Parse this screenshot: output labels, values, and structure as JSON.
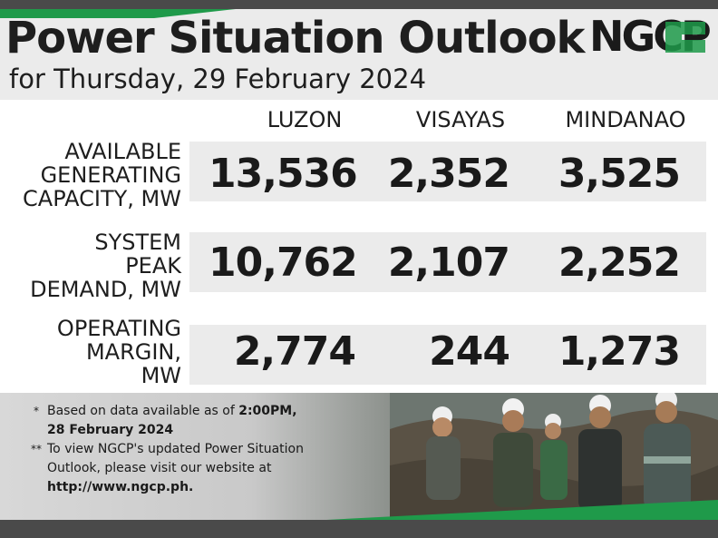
{
  "header": {
    "title": "Power Situation Outlook",
    "subtitle": "for Thursday, 29 February 2024",
    "logo_text": "NGCP"
  },
  "columns": [
    "LUZON",
    "VISAYAS",
    "MINDANAO"
  ],
  "rows": [
    {
      "label_lines": [
        "AVAILABLE",
        "GENERATING",
        "CAPACITY, MW"
      ],
      "values": [
        "13,536",
        "2,352",
        "3,525"
      ]
    },
    {
      "label_lines": [
        "SYSTEM",
        "PEAK",
        "DEMAND, MW"
      ],
      "values": [
        "10,762",
        "2,107",
        "2,252"
      ]
    },
    {
      "label_lines": [
        "OPERATING",
        "MARGIN,",
        "MW"
      ],
      "values": [
        "2,774",
        "244",
        "1,273"
      ]
    }
  ],
  "notes": {
    "note1_mark": "*",
    "note1_text": "Based on data available as of ",
    "note1_bold_time": "2:00PM,",
    "note1_bold_date": "28 February 2024",
    "note2_mark": "**",
    "note2_text_a": "To view NGCP's updated Power Situation",
    "note2_text_b": "Outlook, please visit our website at",
    "note2_url": "http://www.ngcp.ph."
  },
  "colors": {
    "accent_green": "#1f9a4a",
    "dark_bar": "#4a4a4a",
    "band_gray": "#ebebeb",
    "text_dark": "#1e1e1e"
  }
}
